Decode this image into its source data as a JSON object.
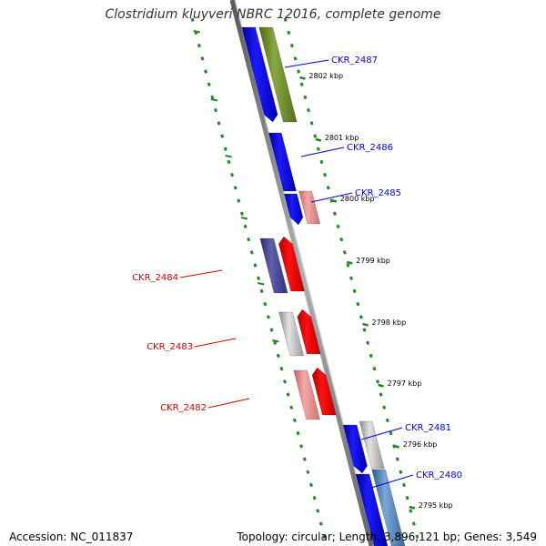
{
  "title": "Clostridium kluyveri NBRC 12016, complete genome",
  "footer": {
    "accession": "Accession: NC_011837",
    "topology": "Topology: circular; Length: 3,896,121 bp; Genes: 3,549"
  },
  "colors": {
    "forward": "#0000ee",
    "reverse": "#dd0000",
    "backbone": "#888888",
    "tick": "#228822"
  },
  "kbp_ticks": [
    {
      "label": "2802 kbp"
    },
    {
      "label": "2801 kbp"
    },
    {
      "label": "2800 kbp"
    },
    {
      "label": "2799 kbp"
    },
    {
      "label": "2798 kbp"
    },
    {
      "label": "2797 kbp"
    },
    {
      "label": "2796 kbp"
    },
    {
      "label": "2795 kbp"
    }
  ],
  "genes": [
    {
      "label": "CKR_2487",
      "strand": "+"
    },
    {
      "label": "CKR_2486",
      "strand": "+"
    },
    {
      "label": "CKR_2485",
      "strand": "+"
    },
    {
      "label": "CKR_2484",
      "strand": "-"
    },
    {
      "label": "CKR_2483",
      "strand": "-"
    },
    {
      "label": "CKR_2482",
      "strand": "-"
    },
    {
      "label": "CKR_2481",
      "strand": "+"
    },
    {
      "label": "CKR_2480",
      "strand": "+"
    }
  ]
}
